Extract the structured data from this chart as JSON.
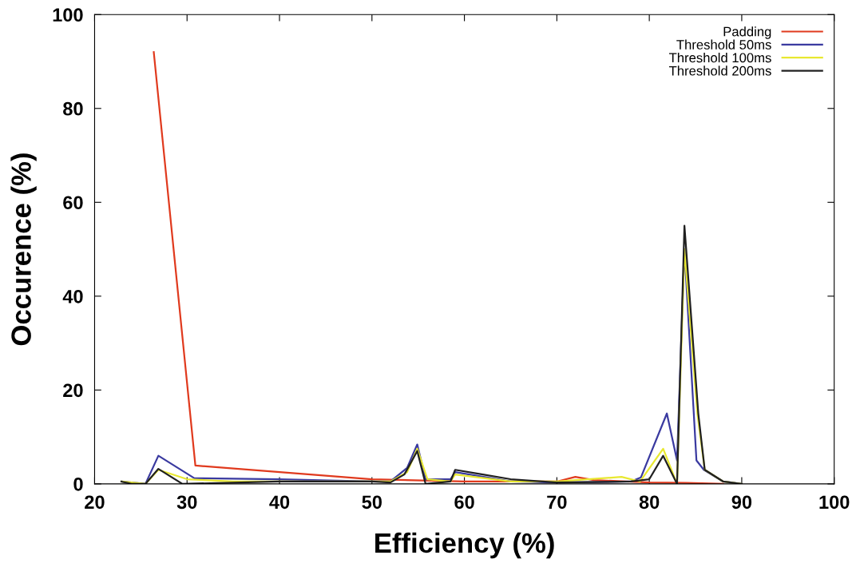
{
  "chart_data": {
    "type": "line",
    "xlabel": "Efficiency (%)",
    "ylabel": "Occurence (%)",
    "xlim": [
      20,
      100
    ],
    "xticks": [
      20,
      30,
      40,
      50,
      60,
      70,
      80,
      90,
      100
    ],
    "ylim": [
      0,
      100
    ],
    "yticks": [
      0,
      20,
      40,
      60,
      80,
      100
    ],
    "grid": false,
    "legend": "top right",
    "series": [
      {
        "name": "Padding",
        "color": "#e03a1e",
        "x": [
          26.4,
          30.9,
          50,
          60,
          70,
          72,
          74,
          80,
          84,
          88
        ],
        "values": [
          92,
          3.9,
          1,
          0.5,
          0.5,
          1.5,
          0.8,
          0.3,
          0.2,
          0
        ]
      },
      {
        "name": "Threshold 50ms",
        "color": "#3a3aa0",
        "x": [
          22.9,
          25.5,
          26.9,
          30.8,
          40,
          50,
          52,
          53.8,
          54.9,
          55.8,
          58.5,
          59,
          65,
          70,
          78,
          79.1,
          81.9,
          83,
          83.8,
          85.1,
          85.9,
          88,
          90
        ],
        "values": [
          0.5,
          0,
          6,
          1.2,
          1,
          0.5,
          0.5,
          3.4,
          8.4,
          1,
          1,
          2.5,
          0.5,
          0.3,
          0.5,
          1.4,
          15,
          5,
          50,
          5,
          3,
          0.5,
          0
        ]
      },
      {
        "name": "Threshold 100ms",
        "color": "#e8e830",
        "x": [
          22.9,
          25.5,
          26.9,
          30,
          35,
          50,
          52,
          53.8,
          54.9,
          56,
          58.5,
          59,
          65,
          70,
          77,
          79,
          81.5,
          83,
          83.8,
          85.2,
          86,
          88,
          90
        ],
        "values": [
          0.5,
          0,
          3,
          1,
          0.5,
          0.5,
          0.5,
          2.5,
          7.5,
          1,
          0.5,
          2,
          0.5,
          0.5,
          1.5,
          0.5,
          7.5,
          0,
          50,
          15,
          3,
          0.5,
          0
        ]
      },
      {
        "name": "Threshold 200ms",
        "color": "#202020",
        "x": [
          22.9,
          24,
          25.5,
          26.9,
          29.5,
          40,
          50,
          52,
          53.5,
          54.9,
          55.8,
          58.5,
          59,
          62,
          65,
          70,
          78,
          80,
          81.5,
          83,
          83.8,
          85.3,
          86,
          88,
          90
        ],
        "values": [
          0.5,
          0,
          0,
          3.2,
          0,
          0.5,
          0.5,
          0.3,
          2,
          7,
          0,
          0.5,
          3,
          2,
          1,
          0.3,
          0.5,
          1,
          6,
          0,
          55,
          15,
          3,
          0.5,
          0
        ]
      }
    ]
  }
}
